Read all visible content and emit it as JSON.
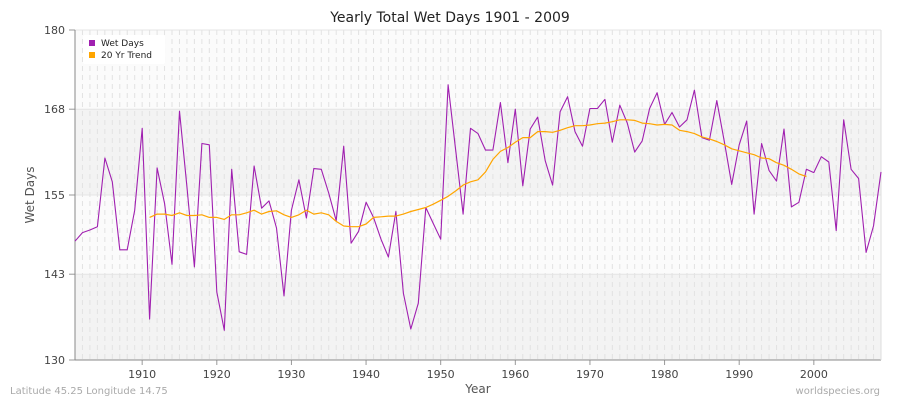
{
  "chart_data": {
    "type": "line",
    "title": "Yearly Total Wet Days 1901 - 2009",
    "xlabel": "Year",
    "ylabel": "Wet Days",
    "xlim": [
      1901,
      2009
    ],
    "ylim": [
      130,
      180
    ],
    "yticks": [
      130,
      143,
      155,
      168,
      180
    ],
    "xticks": [
      1910,
      1920,
      1930,
      1940,
      1950,
      1960,
      1970,
      1980,
      1990,
      2000
    ],
    "legend_position": "top-left",
    "grid": true,
    "series": [
      {
        "name": "Wet Days",
        "color": "#a020b0",
        "x_start": 1901,
        "values": [
          148.0,
          149.3,
          149.7,
          150.2,
          160.6,
          157.0,
          146.7,
          146.7,
          152.7,
          165.1,
          136.2,
          159.1,
          153.7,
          144.5,
          167.7,
          156.3,
          144.1,
          162.8,
          162.6,
          140.3,
          134.5,
          158.9,
          146.4,
          146.0,
          159.4,
          153.0,
          154.1,
          150.0,
          139.7,
          152.7,
          157.3,
          151.5,
          159.0,
          158.9,
          155.3,
          151.1,
          162.4,
          147.7,
          149.5,
          153.9,
          151.6,
          148.3,
          145.6,
          152.5,
          140.1,
          134.7,
          138.6,
          153.1,
          150.7,
          148.3,
          171.7,
          161.9,
          152.1,
          165.1,
          164.3,
          161.8,
          161.8,
          169.0,
          159.9,
          168.0,
          156.4,
          165.0,
          166.8,
          160.2,
          156.5,
          167.6,
          169.9,
          164.6,
          162.4,
          168.1,
          168.1,
          169.5,
          163.0,
          168.6,
          165.9,
          161.5,
          163.2,
          168.1,
          170.5,
          165.7,
          167.5,
          165.3,
          166.4,
          170.9,
          163.7,
          163.3,
          169.3,
          163.1,
          156.6,
          162.6,
          166.2,
          152.1,
          162.8,
          158.7,
          157.1,
          165.0,
          153.2,
          153.9,
          158.9,
          158.4,
          160.8,
          160.0,
          149.6,
          166.4,
          158.9,
          157.5,
          146.3,
          150.3,
          158.5
        ]
      },
      {
        "name": "20 Yr Trend",
        "color": "#ffa500",
        "x_start": 1911,
        "values": [
          151.6,
          152.1,
          152.1,
          151.9,
          152.3,
          151.9,
          151.9,
          152.0,
          151.6,
          151.6,
          151.3,
          152.0,
          152.0,
          152.3,
          152.7,
          152.1,
          152.5,
          152.6,
          152.0,
          151.6,
          152.0,
          152.7,
          152.1,
          152.3,
          152.0,
          151.0,
          150.3,
          150.2,
          150.2,
          150.6,
          151.6,
          151.7,
          151.8,
          151.8,
          152.1,
          152.5,
          152.8,
          153.1,
          153.6,
          154.2,
          154.8,
          155.6,
          156.5,
          157.0,
          157.3,
          158.5,
          160.4,
          161.6,
          162.2,
          163.0,
          163.7,
          163.7,
          164.6,
          164.6,
          164.5,
          164.8,
          165.2,
          165.5,
          165.5,
          165.6,
          165.8,
          165.9,
          166.1,
          166.4,
          166.4,
          166.3,
          165.9,
          165.8,
          165.6,
          165.7,
          165.6,
          164.8,
          164.6,
          164.3,
          163.8,
          163.5,
          163.1,
          162.6,
          162.0,
          161.7,
          161.4,
          161.1,
          160.6,
          160.5,
          159.9,
          159.5,
          158.9,
          158.2,
          157.8
        ]
      }
    ]
  },
  "footer": {
    "location": "Latitude 45.25 Longitude 14.75",
    "source": "worldspecies.org"
  }
}
